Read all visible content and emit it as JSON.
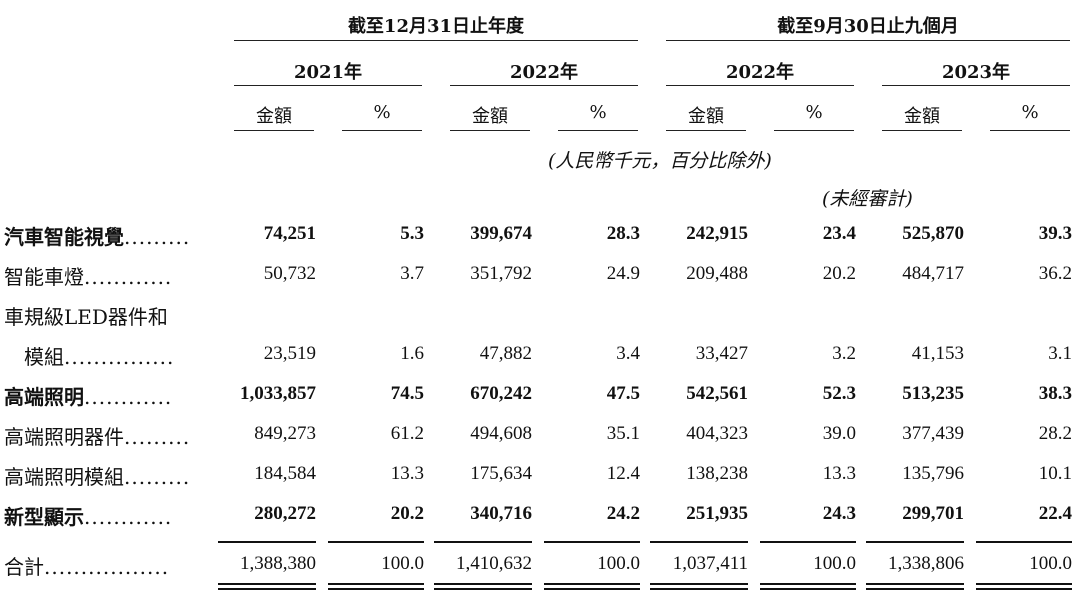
{
  "header": {
    "group1": "截至12月31日止年度",
    "group2": "截至9月30日止九個月",
    "years": [
      "2021年",
      "2022年",
      "2022年",
      "2023年"
    ],
    "amount_label": "金額",
    "pct_label": "%",
    "unit_note": "(人民幣千元，百分比除外)",
    "unaudited_note": "(未經審計)"
  },
  "rows": [
    {
      "label": "汽車智能視覺",
      "dots": ".........",
      "bold": true,
      "values": [
        "74,251",
        "5.3",
        "399,674",
        "28.3",
        "242,915",
        "23.4",
        "525,870",
        "39.3"
      ]
    },
    {
      "label": "智能車燈",
      "dots": "............",
      "bold": false,
      "values": [
        "50,732",
        "3.7",
        "351,792",
        "24.9",
        "209,488",
        "20.2",
        "484,717",
        "36.2"
      ]
    },
    {
      "label": "車規級LED器件和",
      "dots": "",
      "bold": false,
      "values": [
        "",
        "",
        "",
        "",
        "",
        "",
        "",
        ""
      ]
    },
    {
      "label": "　模組",
      "dots": "...............",
      "bold": false,
      "values": [
        "23,519",
        "1.6",
        "47,882",
        "3.4",
        "33,427",
        "3.2",
        "41,153",
        "3.1"
      ]
    },
    {
      "label": "高端照明",
      "dots": "............",
      "bold": true,
      "values": [
        "1,033,857",
        "74.5",
        "670,242",
        "47.5",
        "542,561",
        "52.3",
        "513,235",
        "38.3"
      ]
    },
    {
      "label": "高端照明器件",
      "dots": ".........",
      "bold": false,
      "values": [
        "849,273",
        "61.2",
        "494,608",
        "35.1",
        "404,323",
        "39.0",
        "377,439",
        "28.2"
      ]
    },
    {
      "label": "高端照明模組",
      "dots": ".........",
      "bold": false,
      "values": [
        "184,584",
        "13.3",
        "175,634",
        "12.4",
        "138,238",
        "13.3",
        "135,796",
        "10.1"
      ]
    },
    {
      "label": "新型顯示",
      "dots": "............",
      "bold": true,
      "values": [
        "280,272",
        "20.2",
        "340,716",
        "24.2",
        "251,935",
        "24.3",
        "299,701",
        "22.4"
      ]
    },
    {
      "label": "合計",
      "dots": ".................",
      "bold": false,
      "values": [
        "1,388,380",
        "100.0",
        "1,410,632",
        "100.0",
        "1,037,411",
        "100.0",
        "1,338,806",
        "100.0"
      ]
    }
  ]
}
